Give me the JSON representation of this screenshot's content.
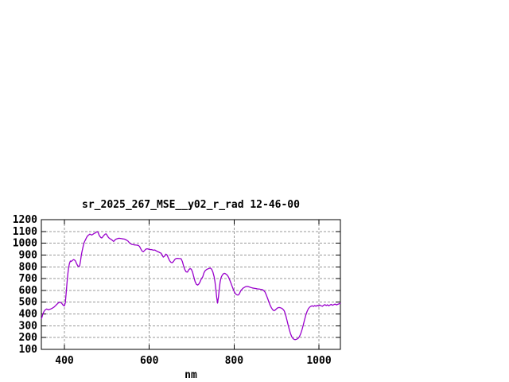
{
  "chart_data": {
    "type": "line",
    "title": "sr_2025_267_MSE__y02_r_rad 12-46-00",
    "xlabel": "nm",
    "ylabel": "",
    "xlim": [
      345.6,
      1050.6
    ],
    "ylim": [
      100,
      1200
    ],
    "x_ticks": [
      400,
      600,
      800,
      1000
    ],
    "y_ticks": [
      100,
      200,
      300,
      400,
      500,
      600,
      700,
      800,
      900,
      1000,
      1100,
      1200
    ],
    "grid": "dashed",
    "legend": "none",
    "colors": {
      "background": "#ffffff",
      "frame": "#000000",
      "grid": "#999999",
      "line": "#9900cc",
      "text": "#000000"
    },
    "series": [
      {
        "points": [
          [
            346,
            362
          ],
          [
            348,
            385
          ],
          [
            350,
            408
          ],
          [
            352,
            422
          ],
          [
            354,
            432
          ],
          [
            356,
            438
          ],
          [
            358,
            442
          ],
          [
            360,
            440
          ],
          [
            362,
            436
          ],
          [
            364,
            438
          ],
          [
            366,
            441
          ],
          [
            368,
            443
          ],
          [
            370,
            446
          ],
          [
            372,
            450
          ],
          [
            374,
            455
          ],
          [
            376,
            460
          ],
          [
            378,
            467
          ],
          [
            380,
            474
          ],
          [
            382,
            481
          ],
          [
            384,
            489
          ],
          [
            386,
            495
          ],
          [
            388,
            499
          ],
          [
            390,
            500
          ],
          [
            392,
            496
          ],
          [
            394,
            489
          ],
          [
            396,
            479
          ],
          [
            398,
            471
          ],
          [
            400,
            469
          ],
          [
            402,
            495
          ],
          [
            404,
            570
          ],
          [
            406,
            660
          ],
          [
            408,
            740
          ],
          [
            410,
            795
          ],
          [
            412,
            830
          ],
          [
            414,
            849
          ],
          [
            416,
            846
          ],
          [
            418,
            851
          ],
          [
            420,
            858
          ],
          [
            422,
            861
          ],
          [
            424,
            857
          ],
          [
            426,
            850
          ],
          [
            428,
            833
          ],
          [
            430,
            818
          ],
          [
            432,
            806
          ],
          [
            434,
            802
          ],
          [
            436,
            810
          ],
          [
            438,
            852
          ],
          [
            440,
            902
          ],
          [
            442,
            938
          ],
          [
            444,
            972
          ],
          [
            446,
            1000
          ],
          [
            448,
            1018
          ],
          [
            450,
            1032
          ],
          [
            452,
            1047
          ],
          [
            454,
            1059
          ],
          [
            456,
            1067
          ],
          [
            458,
            1072
          ],
          [
            460,
            1077
          ],
          [
            462,
            1074
          ],
          [
            464,
            1070
          ],
          [
            466,
            1073
          ],
          [
            468,
            1078
          ],
          [
            470,
            1083
          ],
          [
            472,
            1086
          ],
          [
            474,
            1090
          ],
          [
            476,
            1096
          ],
          [
            478,
            1098
          ],
          [
            480,
            1086
          ],
          [
            482,
            1068
          ],
          [
            484,
            1056
          ],
          [
            486,
            1048
          ],
          [
            488,
            1045
          ],
          [
            490,
            1052
          ],
          [
            492,
            1062
          ],
          [
            494,
            1070
          ],
          [
            496,
            1077
          ],
          [
            498,
            1080
          ],
          [
            500,
            1071
          ],
          [
            502,
            1059
          ],
          [
            504,
            1048
          ],
          [
            506,
            1042
          ],
          [
            508,
            1037
          ],
          [
            510,
            1033
          ],
          [
            512,
            1028
          ],
          [
            514,
            1021
          ],
          [
            516,
            1016
          ],
          [
            518,
            1022
          ],
          [
            520,
            1031
          ],
          [
            523,
            1037
          ],
          [
            526,
            1040
          ],
          [
            529,
            1042
          ],
          [
            532,
            1041
          ],
          [
            535,
            1039
          ],
          [
            538,
            1037
          ],
          [
            541,
            1035
          ],
          [
            544,
            1031
          ],
          [
            547,
            1025
          ],
          [
            550,
            1018
          ],
          [
            553,
            1005
          ],
          [
            556,
            996
          ],
          [
            559,
            990
          ],
          [
            562,
            988
          ],
          [
            565,
            986
          ],
          [
            568,
            985
          ],
          [
            571,
            984
          ],
          [
            574,
            982
          ],
          [
            577,
            973
          ],
          [
            580,
            952
          ],
          [
            583,
            934
          ],
          [
            586,
            928
          ],
          [
            589,
            938
          ],
          [
            592,
            950
          ],
          [
            595,
            953
          ],
          [
            598,
            950
          ],
          [
            601,
            946
          ],
          [
            604,
            947
          ],
          [
            607,
            944
          ],
          [
            610,
            941
          ],
          [
            613,
            943
          ],
          [
            616,
            936
          ],
          [
            619,
            930
          ],
          [
            622,
            926
          ],
          [
            625,
            920
          ],
          [
            628,
            915
          ],
          [
            631,
            895
          ],
          [
            633,
            882
          ],
          [
            636,
            890
          ],
          [
            639,
            908
          ],
          [
            642,
            900
          ],
          [
            645,
            875
          ],
          [
            648,
            852
          ],
          [
            651,
            838
          ],
          [
            654,
            835
          ],
          [
            657,
            845
          ],
          [
            660,
            862
          ],
          [
            663,
            870
          ],
          [
            666,
            872
          ],
          [
            669,
            871
          ],
          [
            672,
            870
          ],
          [
            675,
            868
          ],
          [
            678,
            845
          ],
          [
            681,
            805
          ],
          [
            684,
            775
          ],
          [
            687,
            757
          ],
          [
            690,
            755
          ],
          [
            693,
            775
          ],
          [
            696,
            785
          ],
          [
            699,
            780
          ],
          [
            702,
            755
          ],
          [
            705,
            715
          ],
          [
            708,
            675
          ],
          [
            711,
            652
          ],
          [
            714,
            645
          ],
          [
            717,
            655
          ],
          [
            720,
            675
          ],
          [
            723,
            700
          ],
          [
            726,
            715
          ],
          [
            729,
            750
          ],
          [
            732,
            768
          ],
          [
            735,
            777
          ],
          [
            738,
            782
          ],
          [
            741,
            786
          ],
          [
            744,
            789
          ],
          [
            747,
            780
          ],
          [
            750,
            755
          ],
          [
            753,
            715
          ],
          [
            755,
            672
          ],
          [
            757,
            610
          ],
          [
            759,
            540
          ],
          [
            761,
            492
          ],
          [
            763,
            540
          ],
          [
            765,
            610
          ],
          [
            767,
            668
          ],
          [
            769,
            705
          ],
          [
            771,
            722
          ],
          [
            773,
            733
          ],
          [
            775,
            741
          ],
          [
            777,
            745
          ],
          [
            779,
            743
          ],
          [
            781,
            738
          ],
          [
            783,
            732
          ],
          [
            785,
            724
          ],
          [
            787,
            712
          ],
          [
            789,
            695
          ],
          [
            791,
            677
          ],
          [
            793,
            658
          ],
          [
            795,
            638
          ],
          [
            797,
            620
          ],
          [
            799,
            601
          ],
          [
            801,
            585
          ],
          [
            803,
            574
          ],
          [
            805,
            566
          ],
          [
            807,
            562
          ],
          [
            809,
            560
          ],
          [
            811,
            564
          ],
          [
            813,
            576
          ],
          [
            815,
            592
          ],
          [
            817,
            603
          ],
          [
            819,
            611
          ],
          [
            821,
            618
          ],
          [
            823,
            623
          ],
          [
            825,
            628
          ],
          [
            827,
            631
          ],
          [
            829,
            633
          ],
          [
            831,
            634
          ],
          [
            834,
            631
          ],
          [
            837,
            628
          ],
          [
            840,
            624
          ],
          [
            843,
            621
          ],
          [
            846,
            619
          ],
          [
            849,
            617
          ],
          [
            852,
            615
          ],
          [
            855,
            613
          ],
          [
            858,
            612
          ],
          [
            861,
            610
          ],
          [
            864,
            609
          ],
          [
            867,
            606
          ],
          [
            870,
            598
          ],
          [
            873,
            585
          ],
          [
            876,
            560
          ],
          [
            879,
            532
          ],
          [
            882,
            502
          ],
          [
            885,
            474
          ],
          [
            888,
            452
          ],
          [
            891,
            436
          ],
          [
            894,
            428
          ],
          [
            897,
            434
          ],
          [
            900,
            444
          ],
          [
            903,
            452
          ],
          [
            906,
            455
          ],
          [
            909,
            453
          ],
          [
            912,
            449
          ],
          [
            915,
            441
          ],
          [
            918,
            428
          ],
          [
            921,
            398
          ],
          [
            924,
            356
          ],
          [
            927,
            312
          ],
          [
            930,
            270
          ],
          [
            933,
            233
          ],
          [
            936,
            206
          ],
          [
            939,
            191
          ],
          [
            942,
            184
          ],
          [
            945,
            183
          ],
          [
            948,
            187
          ],
          [
            951,
            194
          ],
          [
            954,
            208
          ],
          [
            957,
            233
          ],
          [
            960,
            266
          ],
          [
            963,
            306
          ],
          [
            966,
            350
          ],
          [
            969,
            390
          ],
          [
            972,
            421
          ],
          [
            975,
            444
          ],
          [
            978,
            458
          ],
          [
            981,
            465
          ],
          [
            984,
            470
          ],
          [
            987,
            464
          ],
          [
            990,
            472
          ],
          [
            993,
            466
          ],
          [
            996,
            474
          ],
          [
            999,
            468
          ],
          [
            1002,
            476
          ],
          [
            1005,
            470
          ],
          [
            1008,
            466
          ],
          [
            1011,
            474
          ],
          [
            1014,
            479
          ],
          [
            1017,
            472
          ],
          [
            1020,
            478
          ],
          [
            1023,
            470
          ],
          [
            1026,
            476
          ],
          [
            1029,
            481
          ],
          [
            1032,
            474
          ],
          [
            1035,
            479
          ],
          [
            1038,
            484
          ],
          [
            1041,
            477
          ],
          [
            1044,
            481
          ],
          [
            1047,
            486
          ],
          [
            1050,
            490
          ]
        ]
      }
    ]
  }
}
